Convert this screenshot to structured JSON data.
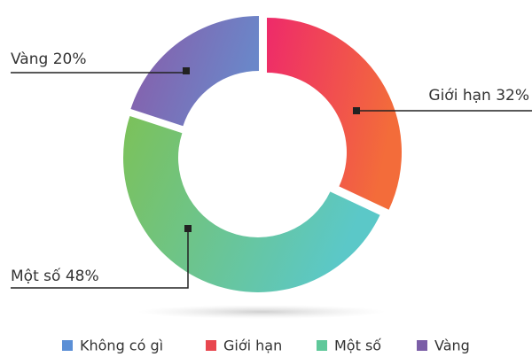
{
  "chart_data": {
    "type": "donut",
    "categories": [
      "Không có gì",
      "Giới hạn",
      "Một số",
      "Vàng"
    ],
    "values": [
      0,
      32,
      48,
      20
    ],
    "value_labels": [
      null,
      "32%",
      "48%",
      "20%"
    ],
    "colors": [
      "#5b8fd6",
      "#e8474f",
      "#5fc89a",
      "#7b5ea7"
    ],
    "gradients": [
      [
        "#5b8fd6",
        "#5b8fd6"
      ],
      [
        "#ee2a6a",
        "#f36c3a"
      ],
      [
        "#7cc159",
        "#5bc8c8"
      ],
      [
        "#8a5aa8",
        "#6a87c9"
      ]
    ],
    "legend": "bottom"
  }
}
